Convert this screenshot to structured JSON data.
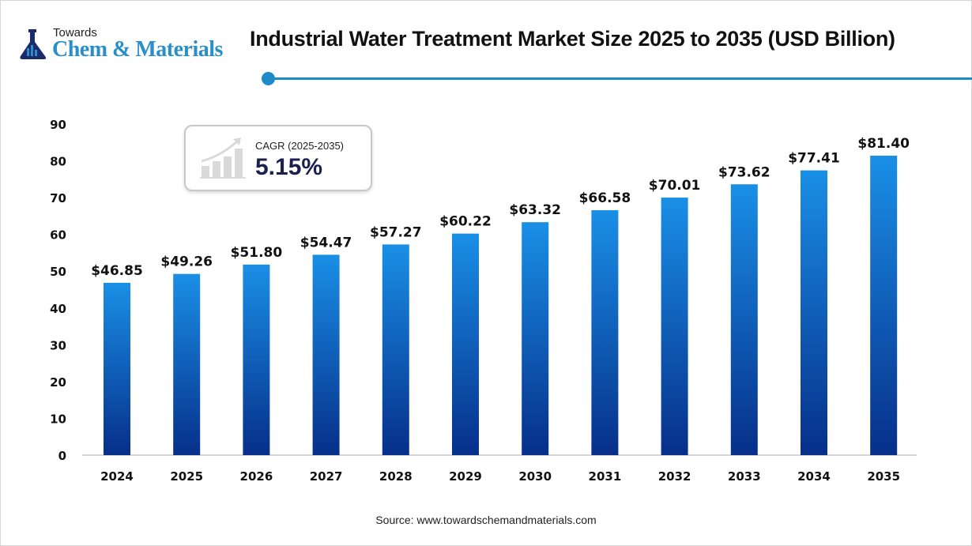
{
  "logo": {
    "line1": "Towards",
    "line2": "Chem & Materials"
  },
  "chart_data": {
    "type": "bar",
    "title": "Industrial Water Treatment Market Size 2025 to 2035 (USD Billion)",
    "categories": [
      "2024",
      "2025",
      "2026",
      "2027",
      "2028",
      "2029",
      "2030",
      "2031",
      "2032",
      "2033",
      "2034",
      "2035"
    ],
    "values": [
      46.85,
      49.26,
      51.8,
      54.47,
      57.27,
      60.22,
      63.32,
      66.58,
      70.01,
      73.62,
      77.41,
      81.4
    ],
    "data_labels": [
      "$46.85",
      "$49.26",
      "$51.80",
      "$54.47",
      "$57.27",
      "$60.22",
      "$63.32",
      "$66.58",
      "$70.01",
      "$73.62",
      "$77.41",
      "$81.40"
    ],
    "ylim": [
      0,
      90
    ],
    "yticks": [
      0,
      10,
      20,
      30,
      40,
      50,
      60,
      70,
      80,
      90
    ],
    "xlabel": "",
    "ylabel": "",
    "grid": false,
    "legend": "none",
    "bar_color_top": "#1a8fe6",
    "bar_color_bottom": "#062f8a"
  },
  "cagr": {
    "label": "CAGR (2025-2035)",
    "value": "5.15%",
    "icon": "growth-chart-icon"
  },
  "source": "Source: www.towardschemandmaterials.com",
  "colors": {
    "accent": "#1f8ac9",
    "cagr_value": "#1b2050"
  }
}
